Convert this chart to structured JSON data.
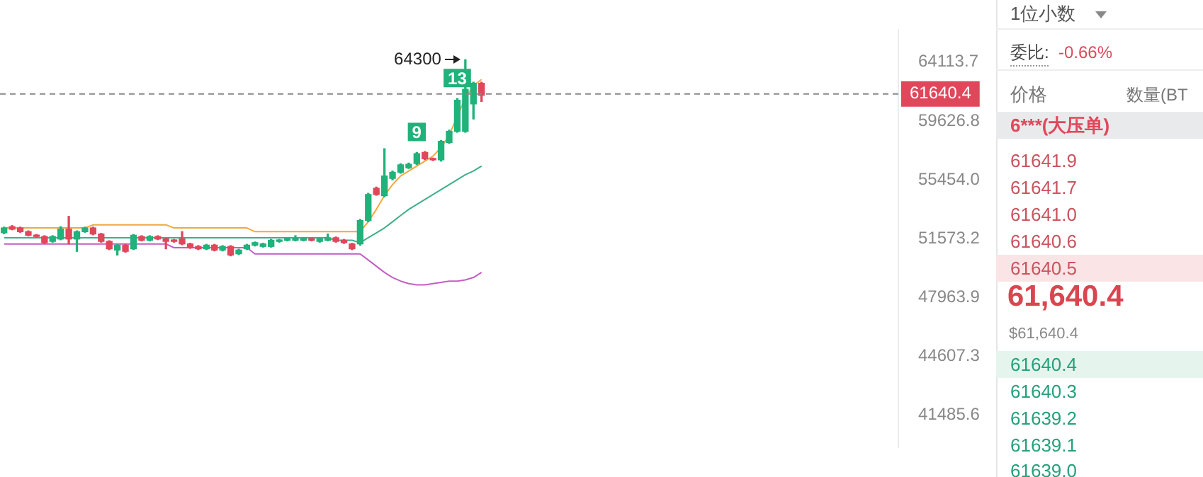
{
  "chart_data": {
    "type": "candlestick",
    "log": true,
    "grid": false,
    "tick_labels": "y",
    "colors": [
      "#1fb27a",
      "#e0475b",
      "#e0475b",
      "#e0475b",
      "#e0475b",
      "#e0475b",
      "#1fb27a",
      "#1fb27a",
      "#e0475b",
      "#1fb27a",
      "#1fb27a",
      "#e0475b",
      "#e0475b",
      "#e0475b",
      "#1fb27a",
      "#e0475b",
      "#1fb27a",
      "#e0475b",
      "#1fb27a",
      "#e0475b",
      "#e0475b",
      "#e0475b",
      "#e0475b",
      "#e0475b",
      "#e0475b",
      "#1fb27a",
      "#e0475b",
      "#1fb27a",
      "#e0475b",
      "#1fb27a",
      "#1fb27a",
      "#1fb27a",
      "#1fb27a",
      "#1fb27a",
      "#1fb27a",
      "#1fb27a",
      "#1fb27a",
      "#1fb27a",
      "#e0475b",
      "#1fb27a",
      "#1fb27a",
      "#e0475b",
      "#e0475b",
      "#e0475b",
      "#1fb27a",
      "#1fb27a",
      "#e0475b",
      "#1fb27a",
      "#1fb27a",
      "#1fb27a",
      "#1fb27a",
      "#1fb27a",
      "#e0475b",
      "#e0475b",
      "#1fb27a",
      "#1fb27a",
      "#1fb27a",
      "#1fb27a",
      "#1fb27a",
      "#e0475b",
      null,
      null,
      null,
      null,
      null,
      null,
      null,
      null,
      null,
      null,
      null,
      null,
      null,
      null,
      null,
      null,
      null,
      null,
      null,
      null,
      null,
      null,
      null,
      null,
      null,
      null,
      null,
      null,
      null,
      null,
      null,
      null,
      null,
      null,
      null,
      null,
      null,
      null,
      null,
      null,
      null,
      null,
      null,
      null,
      null,
      null,
      null,
      null,
      null,
      null,
      null
    ],
    "categories": [
      null,
      null,
      null,
      null,
      null,
      null,
      null,
      null,
      null,
      null,
      null,
      null,
      null,
      null,
      null,
      null,
      null,
      null,
      null,
      null,
      null,
      null,
      null,
      null,
      null,
      null,
      null,
      null,
      null,
      null,
      null,
      null,
      null,
      null,
      null,
      null,
      null,
      null,
      null,
      null,
      null,
      null,
      null,
      null,
      null,
      null,
      null,
      null,
      null,
      null,
      null,
      null,
      null,
      null,
      null,
      null,
      null,
      null,
      null,
      null,
      null,
      null,
      null,
      null,
      null,
      null,
      null,
      null,
      null,
      null,
      null,
      null,
      null,
      null,
      null,
      null,
      null,
      null,
      null,
      null,
      null,
      null,
      null,
      null,
      null,
      null,
      null,
      null,
      null,
      null,
      null,
      null,
      null,
      null,
      null,
      null,
      null,
      null,
      null,
      null,
      null,
      null,
      null,
      null,
      null,
      null,
      null,
      null,
      null,
      null,
      null
    ],
    "ohlc": [
      [
        51940,
        52300,
        51880,
        52250
      ],
      [
        52330,
        52400,
        52130,
        52170
      ],
      [
        52250,
        52300,
        51970,
        52010
      ],
      [
        52010,
        52060,
        51740,
        51780
      ],
      [
        51780,
        51830,
        51650,
        51700
      ],
      [
        51700,
        51750,
        51260,
        51310
      ],
      [
        51390,
        51750,
        51340,
        51700
      ],
      [
        51540,
        52330,
        51490,
        52170
      ],
      [
        52170,
        53000,
        51230,
        51540
      ],
      [
        51540,
        52060,
        50760,
        52010
      ],
      [
        52010,
        52300,
        51970,
        52250
      ],
      [
        52250,
        52300,
        51810,
        51860
      ],
      [
        51860,
        51900,
        51340,
        51390
      ],
      [
        51390,
        51430,
        50870,
        50920
      ],
      [
        50840,
        51200,
        50530,
        51150
      ],
      [
        51150,
        51200,
        50710,
        50760
      ],
      [
        50920,
        51830,
        50870,
        51780
      ],
      [
        51700,
        51750,
        51420,
        51460
      ],
      [
        51460,
        51750,
        51420,
        51700
      ],
      [
        51700,
        51750,
        51500,
        51540
      ],
      [
        51540,
        51590,
        50920,
        51390
      ],
      [
        51460,
        51510,
        51340,
        51390
      ],
      [
        51540,
        52010,
        51180,
        51230
      ],
      [
        51230,
        51270,
        50950,
        51000
      ],
      [
        51070,
        51120,
        50870,
        50920
      ],
      [
        50920,
        51200,
        50870,
        51150
      ],
      [
        51150,
        51200,
        50790,
        50840
      ],
      [
        50840,
        51120,
        50790,
        51070
      ],
      [
        51070,
        51120,
        50480,
        50530
      ],
      [
        50610,
        50890,
        50560,
        50840
      ],
      [
        50920,
        51200,
        50870,
        51150
      ],
      [
        51150,
        51350,
        51100,
        51310
      ],
      [
        51070,
        51270,
        51030,
        51230
      ],
      [
        51070,
        51510,
        51030,
        51460
      ],
      [
        51390,
        51510,
        51340,
        51460
      ],
      [
        51460,
        51590,
        51420,
        51540
      ],
      [
        51460,
        51750,
        51420,
        51540
      ],
      [
        51460,
        51590,
        51420,
        51540
      ],
      [
        51540,
        51590,
        51420,
        51460
      ],
      [
        51390,
        51590,
        51340,
        51540
      ],
      [
        51460,
        51860,
        51420,
        51620
      ],
      [
        51620,
        51670,
        51340,
        51390
      ],
      [
        51460,
        51510,
        51260,
        51310
      ],
      [
        51230,
        51270,
        50870,
        50920
      ],
      [
        51230,
        52800,
        51150,
        52730
      ],
      [
        52730,
        54530,
        52650,
        54450
      ],
      [
        54870,
        54950,
        54400,
        54450
      ],
      [
        54370,
        57610,
        54300,
        55710
      ],
      [
        55540,
        56050,
        55450,
        55970
      ],
      [
        55970,
        56560,
        55900,
        56480
      ],
      [
        56280,
        56600,
        56230,
        56520
      ],
      [
        56570,
        57350,
        56500,
        57260
      ],
      [
        57350,
        57420,
        56850,
        56910
      ],
      [
        56910,
        56950,
        56780,
        56830
      ],
      [
        56830,
        58200,
        56750,
        58150
      ],
      [
        58060,
        58950,
        58000,
        58860
      ],
      [
        58860,
        61300,
        58800,
        61170
      ],
      [
        58860,
        64300,
        58800,
        62000
      ],
      [
        60890,
        62550,
        59770,
        62470
      ],
      [
        62470,
        62550,
        61080,
        61550
      ],
      null,
      null,
      null,
      null,
      null,
      null,
      null,
      null,
      null,
      null,
      null,
      null,
      null,
      null,
      null,
      null,
      null,
      null,
      null,
      null,
      null,
      null,
      null,
      null,
      null,
      null,
      null,
      null,
      null,
      null,
      null,
      null,
      null,
      null,
      null,
      null,
      null,
      null,
      null,
      null,
      null,
      null,
      null,
      null,
      null,
      null,
      null,
      null,
      null,
      null,
      null
    ],
    "series": [
      {
        "type": "line",
        "color": "#f0a93b",
        "values": [
          52250,
          52250,
          52250,
          52250,
          52250,
          52250,
          52250,
          52250,
          52250,
          52250,
          52250,
          52450,
          52450,
          52450,
          52450,
          52450,
          52450,
          52450,
          52450,
          52450,
          52450,
          52250,
          52250,
          52250,
          52250,
          52250,
          52250,
          52250,
          52250,
          52250,
          52250,
          52010,
          52010,
          52010,
          52010,
          52010,
          52010,
          52010,
          52010,
          52010,
          52010,
          52010,
          52010,
          52010,
          52010,
          52650,
          53460,
          54370,
          55120,
          55710,
          56050,
          56400,
          56740,
          57090,
          57700,
          58590,
          59950,
          61340,
          62280,
          62760,
          null,
          null,
          null,
          null,
          null,
          null,
          null,
          null,
          null,
          null,
          null,
          null,
          null,
          null,
          null,
          null,
          null,
          null,
          null,
          null,
          null,
          null,
          null,
          null,
          null,
          null,
          null,
          null,
          null,
          null,
          null,
          null,
          null,
          null,
          null,
          null,
          null,
          null,
          null,
          null,
          null,
          null,
          null,
          null,
          null,
          null,
          null,
          null,
          null,
          null,
          null
        ]
      },
      {
        "type": "line",
        "color": "#3cb08a",
        "values": [
          51620,
          51620,
          51620,
          51620,
          51620,
          51620,
          51620,
          51620,
          51620,
          51620,
          51620,
          51620,
          51620,
          51620,
          51620,
          51620,
          51620,
          51620,
          51620,
          51620,
          51620,
          51620,
          51620,
          51620,
          51620,
          51620,
          51620,
          51620,
          51620,
          51620,
          51620,
          51620,
          51620,
          51620,
          51620,
          51620,
          51620,
          51620,
          51620,
          51620,
          51620,
          51460,
          51460,
          51460,
          51310,
          51620,
          51930,
          52250,
          52650,
          53060,
          53460,
          53790,
          54120,
          54450,
          54780,
          55120,
          55460,
          55800,
          56050,
          56400,
          null,
          null,
          null,
          null,
          null,
          null,
          null,
          null,
          null,
          null,
          null,
          null,
          null,
          null,
          null,
          null,
          null,
          null,
          null,
          null,
          null,
          null,
          null,
          null,
          null,
          null,
          null,
          null,
          null,
          null,
          null,
          null,
          null,
          null,
          null,
          null,
          null,
          null,
          null,
          null,
          null,
          null,
          null,
          null,
          null,
          null,
          null,
          null,
          null,
          null,
          null
        ]
      },
      {
        "type": "line",
        "color": "#c45ec4",
        "values": [
          51230,
          51230,
          51230,
          51230,
          51230,
          51230,
          51230,
          51230,
          51230,
          51230,
          51230,
          51230,
          51230,
          51230,
          51230,
          51230,
          51230,
          51230,
          51230,
          51230,
          51230,
          50990,
          50990,
          50990,
          50990,
          50990,
          50990,
          50990,
          50990,
          50990,
          50990,
          50600,
          50600,
          50600,
          50600,
          50600,
          50600,
          50600,
          50600,
          50600,
          50600,
          50600,
          50600,
          50600,
          50600,
          50220,
          49840,
          49460,
          49150,
          48930,
          48780,
          48700,
          48700,
          48780,
          48850,
          48930,
          48930,
          49000,
          49150,
          49460,
          null,
          null,
          null,
          null,
          null,
          null,
          null,
          null,
          null,
          null,
          null,
          null,
          null,
          null,
          null,
          null,
          null,
          null,
          null,
          null,
          null,
          null,
          null,
          null,
          null,
          null,
          null,
          null,
          null,
          null,
          null,
          null,
          null,
          null,
          null,
          null,
          null,
          null,
          null,
          null,
          null,
          null,
          null,
          null,
          null,
          null,
          null,
          null,
          null,
          null,
          null
        ]
      }
    ],
    "ylim": [
      39870,
      66710
    ],
    "yticks": [
      41485.6,
      44607.3,
      47963.9,
      51573.2,
      {
        "value": 55454,
        "label": "55454.0"
      },
      59626.8,
      64113.7
    ],
    "ref_lines": [
      {
        "axis": "y",
        "value": 61640.4,
        "label": "61640.4",
        "color": "#888888",
        "line_style": "dashed"
      }
    ],
    "annotations": [
      "64300",
      {
        "text": "9",
        "y": 57350
      },
      {
        "text": "13",
        "y": 61300
      },
      "1位小数",
      "委比:",
      "-0.66%",
      "价格",
      "数量(BT",
      "6***(大压单)",
      "61641.9",
      "61641.7",
      "61641.0",
      "61640.6",
      "61640.5",
      "61,640.4",
      "$61,640.4",
      "61640.4",
      "61640.3",
      "61639.2",
      "61639.1",
      "61639.0"
    ]
  }
}
